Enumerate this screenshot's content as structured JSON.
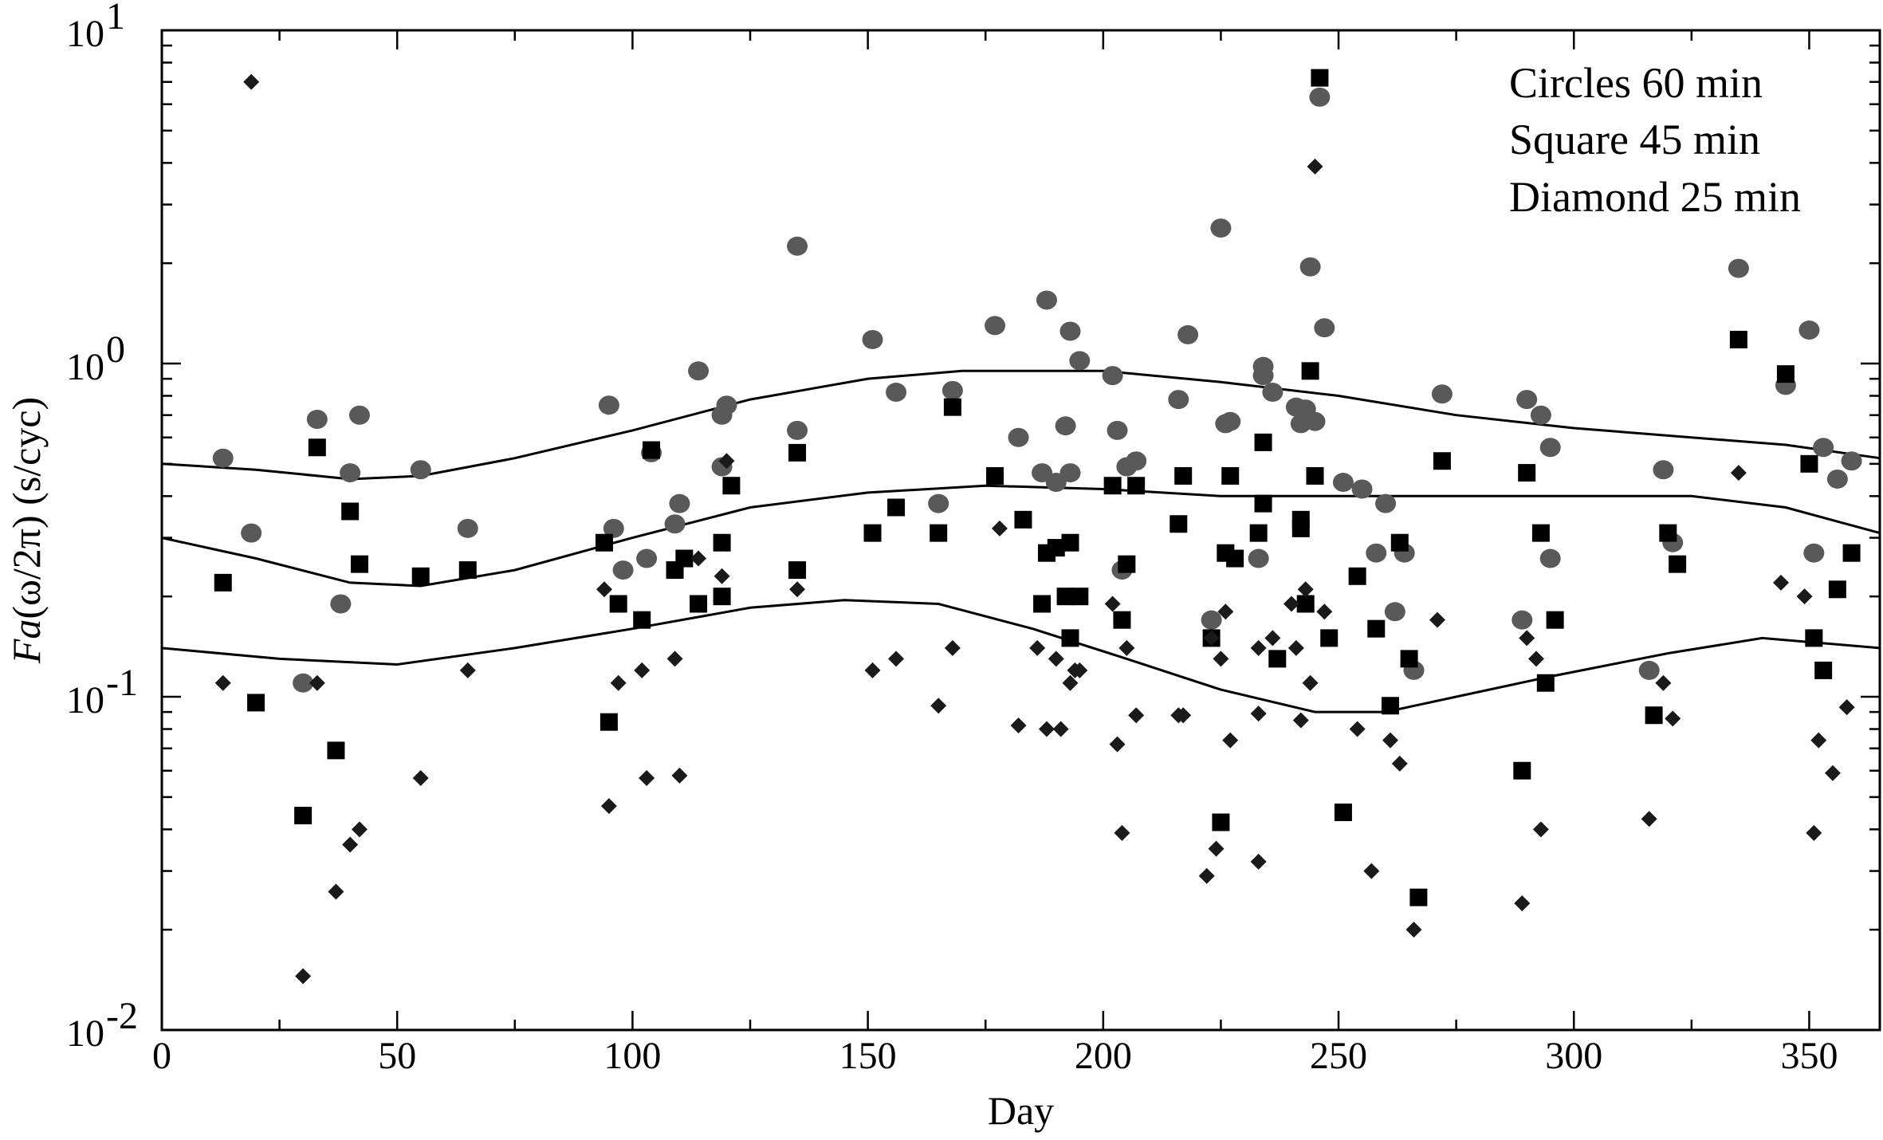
{
  "chart_data": {
    "type": "scatter",
    "title": "",
    "xlabel": "Day",
    "ylabel_parts": {
      "italic": "Fa",
      "rest": "(ω/2π) (s/cyc)"
    },
    "xlim": [
      0,
      365
    ],
    "ylim": [
      0.01,
      10
    ],
    "yscale": "log",
    "grid": false,
    "legend_position": "top-right",
    "legend_lines": [
      "Circles 60 min",
      "Square 45 min",
      "Diamond 25 min"
    ],
    "x_ticks": [
      0,
      50,
      100,
      150,
      200,
      250,
      300,
      350
    ],
    "x_tick_labels": [
      "0",
      "50",
      "100",
      "150",
      "200",
      "250",
      "300",
      "350"
    ],
    "y_ticks": [
      {
        "value": 0.01,
        "base": "10",
        "exp": "-2"
      },
      {
        "value": 0.1,
        "base": "10",
        "exp": "-1"
      },
      {
        "value": 1,
        "base": "10",
        "exp": "0"
      },
      {
        "value": 10,
        "base": "10",
        "exp": "1"
      }
    ],
    "marker_colors": {
      "circle": "#595959",
      "square": "#000000",
      "diamond": "#1a1a1a"
    },
    "series": [
      {
        "marker": "circle",
        "points": [
          [
            13,
            0.52
          ],
          [
            19,
            0.31
          ],
          [
            30,
            0.11
          ],
          [
            33,
            0.68
          ],
          [
            38,
            0.19
          ],
          [
            40,
            0.47
          ],
          [
            42,
            0.7
          ],
          [
            55,
            0.48
          ],
          [
            65,
            0.32
          ],
          [
            95,
            0.75
          ],
          [
            96,
            0.32
          ],
          [
            98,
            0.24
          ],
          [
            103,
            0.26
          ],
          [
            104,
            0.54
          ],
          [
            109,
            0.33
          ],
          [
            110,
            0.38
          ],
          [
            114,
            0.95
          ],
          [
            119,
            0.7
          ],
          [
            119,
            0.49
          ],
          [
            120,
            0.75
          ],
          [
            135,
            2.25
          ],
          [
            135,
            0.63
          ],
          [
            151,
            1.18
          ],
          [
            156,
            0.82
          ],
          [
            165,
            0.38
          ],
          [
            168,
            0.83
          ],
          [
            177,
            1.3
          ],
          [
            182,
            0.6
          ],
          [
            187,
            0.47
          ],
          [
            188,
            1.55
          ],
          [
            190,
            0.44
          ],
          [
            192,
            0.65
          ],
          [
            193,
            1.25
          ],
          [
            193,
            0.47
          ],
          [
            195,
            1.02
          ],
          [
            202,
            0.92
          ],
          [
            203,
            0.63
          ],
          [
            204,
            0.24
          ],
          [
            205,
            0.49
          ],
          [
            207,
            0.51
          ],
          [
            216,
            0.78
          ],
          [
            218,
            1.22
          ],
          [
            223,
            0.17
          ],
          [
            225,
            2.55
          ],
          [
            226,
            0.66
          ],
          [
            227,
            0.67
          ],
          [
            233,
            0.26
          ],
          [
            234,
            0.98
          ],
          [
            234,
            0.92
          ],
          [
            236,
            0.82
          ],
          [
            241,
            0.74
          ],
          [
            242,
            0.66
          ],
          [
            243,
            0.73
          ],
          [
            244,
            1.95
          ],
          [
            245,
            0.67
          ],
          [
            246,
            6.3
          ],
          [
            247,
            1.28
          ],
          [
            251,
            0.44
          ],
          [
            255,
            0.42
          ],
          [
            258,
            0.27
          ],
          [
            260,
            0.38
          ],
          [
            262,
            0.18
          ],
          [
            264,
            0.27
          ],
          [
            266,
            0.12
          ],
          [
            272,
            0.81
          ],
          [
            289,
            0.17
          ],
          [
            290,
            0.78
          ],
          [
            293,
            0.7
          ],
          [
            295,
            0.26
          ],
          [
            295,
            0.56
          ],
          [
            316,
            0.12
          ],
          [
            319,
            0.48
          ],
          [
            321,
            0.29
          ],
          [
            335,
            1.93
          ],
          [
            345,
            0.86
          ],
          [
            350,
            1.26
          ],
          [
            351,
            0.27
          ],
          [
            353,
            0.56
          ],
          [
            356,
            0.45
          ],
          [
            359,
            0.51
          ]
        ]
      },
      {
        "marker": "square",
        "points": [
          [
            13,
            0.22
          ],
          [
            20,
            0.096
          ],
          [
            30,
            0.044
          ],
          [
            33,
            0.56
          ],
          [
            37,
            0.069
          ],
          [
            40,
            0.36
          ],
          [
            42,
            0.25
          ],
          [
            55,
            0.23
          ],
          [
            65,
            0.24
          ],
          [
            94,
            0.29
          ],
          [
            95,
            0.084
          ],
          [
            97,
            0.19
          ],
          [
            102,
            0.17
          ],
          [
            104,
            0.55
          ],
          [
            109,
            0.24
          ],
          [
            111,
            0.26
          ],
          [
            114,
            0.19
          ],
          [
            119,
            0.29
          ],
          [
            119,
            0.2
          ],
          [
            121,
            0.43
          ],
          [
            135,
            0.54
          ],
          [
            135,
            0.24
          ],
          [
            151,
            0.31
          ],
          [
            156,
            0.37
          ],
          [
            165,
            0.31
          ],
          [
            168,
            0.74
          ],
          [
            177,
            0.46
          ],
          [
            183,
            0.34
          ],
          [
            187,
            0.19
          ],
          [
            188,
            0.27
          ],
          [
            190,
            0.28
          ],
          [
            192,
            0.2
          ],
          [
            193,
            0.15
          ],
          [
            193,
            0.29
          ],
          [
            195,
            0.2
          ],
          [
            202,
            0.43
          ],
          [
            204,
            0.17
          ],
          [
            205,
            0.25
          ],
          [
            207,
            0.43
          ],
          [
            216,
            0.33
          ],
          [
            217,
            0.46
          ],
          [
            223,
            0.15
          ],
          [
            225,
            0.042
          ],
          [
            226,
            0.27
          ],
          [
            227,
            0.46
          ],
          [
            228,
            0.26
          ],
          [
            233,
            0.31
          ],
          [
            234,
            0.58
          ],
          [
            234,
            0.38
          ],
          [
            237,
            0.13
          ],
          [
            242,
            0.34
          ],
          [
            242,
            0.32
          ],
          [
            243,
            0.19
          ],
          [
            244,
            0.95
          ],
          [
            245,
            0.46
          ],
          [
            246,
            7.2
          ],
          [
            248,
            0.15
          ],
          [
            251,
            0.045
          ],
          [
            254,
            0.23
          ],
          [
            258,
            0.16
          ],
          [
            261,
            0.094
          ],
          [
            263,
            0.29
          ],
          [
            265,
            0.13
          ],
          [
            267,
            0.025
          ],
          [
            272,
            0.51
          ],
          [
            289,
            0.06
          ],
          [
            290,
            0.47
          ],
          [
            293,
            0.31
          ],
          [
            294,
            0.11
          ],
          [
            296,
            0.17
          ],
          [
            317,
            0.088
          ],
          [
            320,
            0.31
          ],
          [
            322,
            0.25
          ],
          [
            335,
            1.18
          ],
          [
            345,
            0.93
          ],
          [
            350,
            0.5
          ],
          [
            351,
            0.15
          ],
          [
            353,
            0.12
          ],
          [
            356,
            0.21
          ],
          [
            359,
            0.27
          ]
        ]
      },
      {
        "marker": "diamond",
        "points": [
          [
            13,
            0.11
          ],
          [
            19,
            7.0
          ],
          [
            30,
            0.0145
          ],
          [
            33,
            0.11
          ],
          [
            37,
            0.026
          ],
          [
            40,
            0.036
          ],
          [
            42,
            0.04
          ],
          [
            55,
            0.057
          ],
          [
            65,
            0.12
          ],
          [
            94,
            0.21
          ],
          [
            95,
            0.047
          ],
          [
            97,
            0.11
          ],
          [
            102,
            0.12
          ],
          [
            103,
            0.057
          ],
          [
            109,
            0.13
          ],
          [
            110,
            0.058
          ],
          [
            114,
            0.26
          ],
          [
            119,
            0.23
          ],
          [
            120,
            0.51
          ],
          [
            135,
            0.21
          ],
          [
            151,
            0.12
          ],
          [
            156,
            0.13
          ],
          [
            165,
            0.094
          ],
          [
            168,
            0.14
          ],
          [
            178,
            0.32
          ],
          [
            182,
            0.082
          ],
          [
            186,
            0.14
          ],
          [
            188,
            0.08
          ],
          [
            190,
            0.13
          ],
          [
            191,
            0.08
          ],
          [
            193,
            0.11
          ],
          [
            194,
            0.12
          ],
          [
            195,
            0.12
          ],
          [
            202,
            0.19
          ],
          [
            203,
            0.072
          ],
          [
            204,
            0.039
          ],
          [
            205,
            0.14
          ],
          [
            207,
            0.088
          ],
          [
            216,
            0.088
          ],
          [
            217,
            0.088
          ],
          [
            222,
            0.029
          ],
          [
            223,
            0.15
          ],
          [
            224,
            0.035
          ],
          [
            225,
            0.13
          ],
          [
            226,
            0.18
          ],
          [
            227,
            0.074
          ],
          [
            233,
            0.032
          ],
          [
            233,
            0.14
          ],
          [
            233,
            0.089
          ],
          [
            236,
            0.15
          ],
          [
            240,
            0.19
          ],
          [
            241,
            0.14
          ],
          [
            242,
            0.085
          ],
          [
            243,
            0.21
          ],
          [
            244,
            0.11
          ],
          [
            245,
            3.9
          ],
          [
            247,
            0.18
          ],
          [
            254,
            0.08
          ],
          [
            257,
            0.03
          ],
          [
            261,
            0.074
          ],
          [
            263,
            0.063
          ],
          [
            266,
            0.02
          ],
          [
            271,
            0.17
          ],
          [
            289,
            0.024
          ],
          [
            290,
            0.15
          ],
          [
            292,
            0.13
          ],
          [
            293,
            0.04
          ],
          [
            316,
            0.043
          ],
          [
            319,
            0.11
          ],
          [
            321,
            0.086
          ],
          [
            335,
            0.47
          ],
          [
            344,
            0.22
          ],
          [
            349,
            0.2
          ],
          [
            351,
            0.039
          ],
          [
            352,
            0.074
          ],
          [
            355,
            0.059
          ],
          [
            358,
            0.093
          ]
        ]
      }
    ],
    "curves": [
      {
        "points": [
          [
            0,
            0.5
          ],
          [
            20,
            0.48
          ],
          [
            40,
            0.45
          ],
          [
            55,
            0.46
          ],
          [
            75,
            0.52
          ],
          [
            100,
            0.63
          ],
          [
            125,
            0.78
          ],
          [
            150,
            0.9
          ],
          [
            170,
            0.95
          ],
          [
            200,
            0.95
          ],
          [
            225,
            0.88
          ],
          [
            250,
            0.8
          ],
          [
            275,
            0.7
          ],
          [
            300,
            0.64
          ],
          [
            325,
            0.6
          ],
          [
            345,
            0.57
          ],
          [
            365,
            0.52
          ]
        ]
      },
      {
        "points": [
          [
            0,
            0.3
          ],
          [
            20,
            0.26
          ],
          [
            40,
            0.22
          ],
          [
            55,
            0.215
          ],
          [
            75,
            0.24
          ],
          [
            100,
            0.3
          ],
          [
            125,
            0.37
          ],
          [
            150,
            0.41
          ],
          [
            175,
            0.43
          ],
          [
            200,
            0.42
          ],
          [
            225,
            0.4
          ],
          [
            250,
            0.4
          ],
          [
            275,
            0.4
          ],
          [
            300,
            0.4
          ],
          [
            325,
            0.4
          ],
          [
            345,
            0.37
          ],
          [
            365,
            0.31
          ]
        ]
      },
      {
        "points": [
          [
            0,
            0.14
          ],
          [
            25,
            0.13
          ],
          [
            50,
            0.125
          ],
          [
            75,
            0.14
          ],
          [
            100,
            0.16
          ],
          [
            125,
            0.185
          ],
          [
            145,
            0.195
          ],
          [
            165,
            0.19
          ],
          [
            185,
            0.16
          ],
          [
            205,
            0.13
          ],
          [
            225,
            0.105
          ],
          [
            245,
            0.09
          ],
          [
            260,
            0.09
          ],
          [
            275,
            0.1
          ],
          [
            295,
            0.115
          ],
          [
            320,
            0.135
          ],
          [
            340,
            0.15
          ],
          [
            365,
            0.14
          ]
        ]
      }
    ]
  }
}
